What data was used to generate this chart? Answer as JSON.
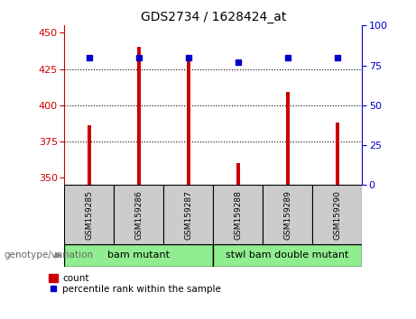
{
  "title": "GDS2734 / 1628424_at",
  "samples": [
    "GSM159285",
    "GSM159286",
    "GSM159287",
    "GSM159288",
    "GSM159289",
    "GSM159290"
  ],
  "counts": [
    386,
    440,
    435,
    360,
    409,
    388
  ],
  "percentiles": [
    80,
    80,
    80,
    77,
    80,
    80
  ],
  "ylim_left": [
    345,
    455
  ],
  "ylim_right": [
    0,
    100
  ],
  "yticks_left": [
    350,
    375,
    400,
    425,
    450
  ],
  "yticks_right": [
    0,
    25,
    50,
    75,
    100
  ],
  "bar_color": "#cc0000",
  "dot_color": "#0000cc",
  "grid_ticks": [
    375,
    400,
    425
  ],
  "groups": [
    {
      "label": "bam mutant",
      "indices": [
        0,
        1,
        2
      ],
      "color": "#90EE90"
    },
    {
      "label": "stwl bam double mutant",
      "indices": [
        3,
        4,
        5
      ],
      "color": "#90EE90"
    }
  ],
  "group_label_prefix": "genotype/variation",
  "legend_count_label": "count",
  "legend_percentile_label": "percentile rank within the sample",
  "bar_width": 0.07,
  "x_positions": [
    0,
    1,
    2,
    3,
    4,
    5
  ],
  "sample_box_color": "#cccccc",
  "left_axis_color": "#cc0000",
  "right_axis_color": "#0000cc"
}
